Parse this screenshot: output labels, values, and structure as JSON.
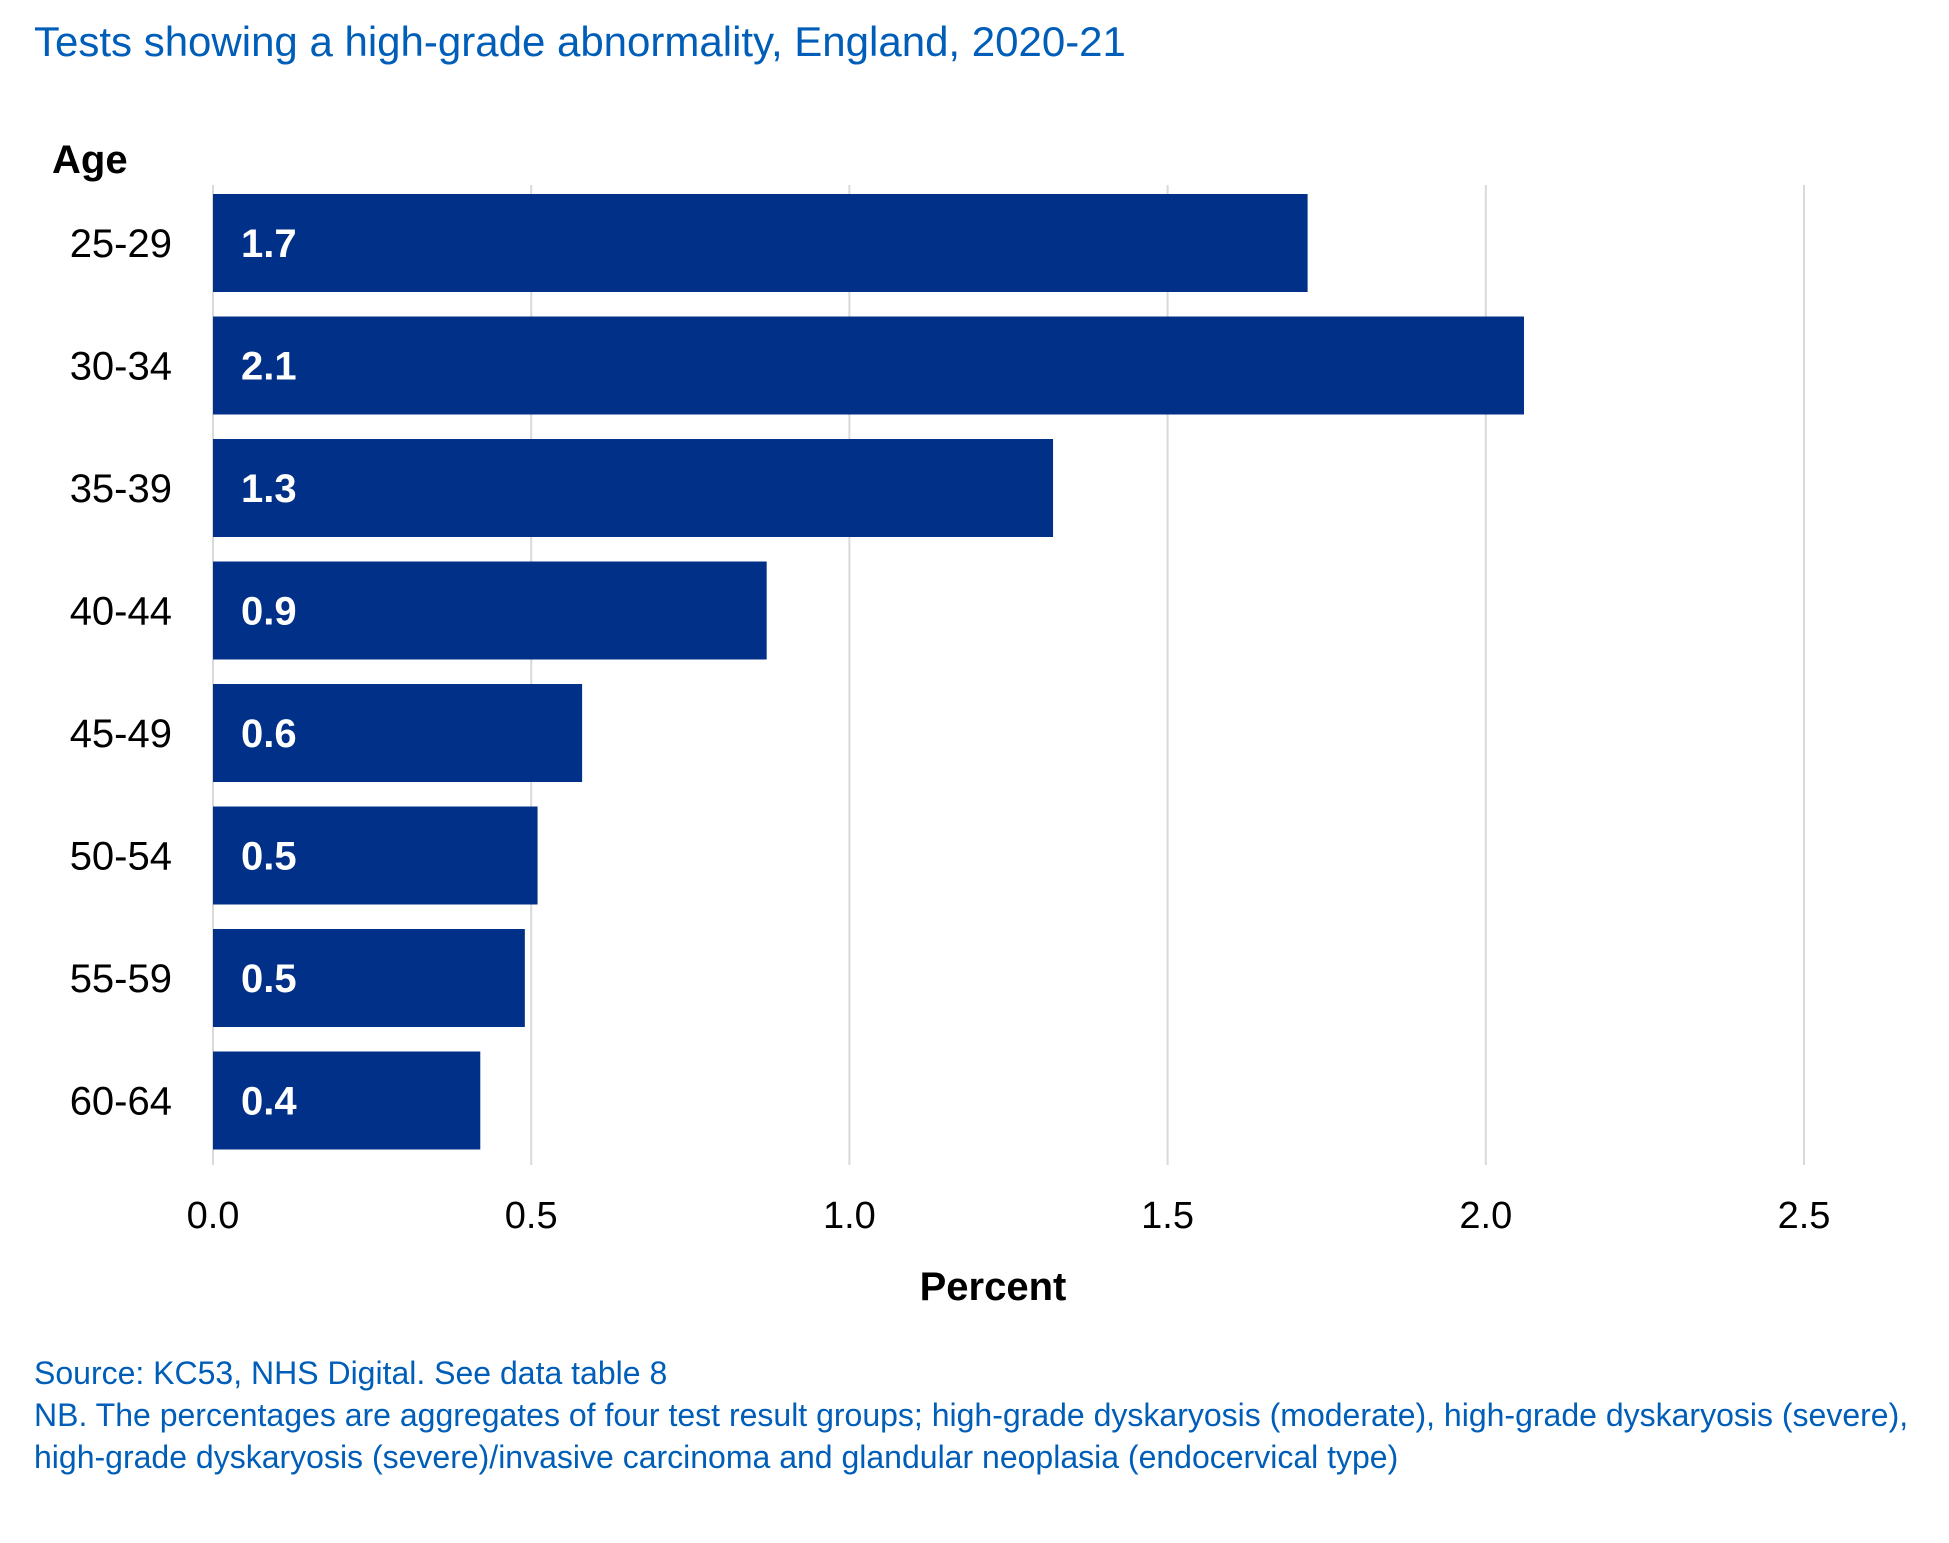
{
  "title": "Tests showing a high-grade abnormality, England, 2020-21",
  "chart_data": {
    "type": "bar",
    "orientation": "horizontal",
    "title": "Tests showing a high-grade abnormality, England, 2020-21",
    "ylabel": "Age",
    "xlabel": "Percent",
    "categories": [
      "25-29",
      "30-34",
      "35-39",
      "40-44",
      "45-49",
      "50-54",
      "55-59",
      "60-64"
    ],
    "values": [
      1.72,
      2.06,
      1.32,
      0.87,
      0.58,
      0.51,
      0.49,
      0.42
    ],
    "data_labels": [
      "1.7",
      "2.1",
      "1.3",
      "0.9",
      "0.6",
      "0.5",
      "0.5",
      "0.4"
    ],
    "xlim": [
      0,
      2.5
    ],
    "xticks": [
      "0.0",
      "0.5",
      "1.0",
      "1.5",
      "2.0",
      "2.5"
    ],
    "grid": "vertical",
    "bar_color": "#003087",
    "label_color": "#ffffff"
  },
  "notes": {
    "source": "Source: KC53, NHS Digital.  See data table 8",
    "nb": "NB. The percentages are aggregates of four test result groups; high-grade dyskaryosis (moderate), high-grade dyskaryosis (severe), high-grade dyskaryosis (severe)/invasive carcinoma and glandular neoplasia (endocervical type)"
  },
  "colors": {
    "accent": "#005eb8",
    "bar": "#003087",
    "grid": "#d9d9d9",
    "text": "#000000"
  }
}
